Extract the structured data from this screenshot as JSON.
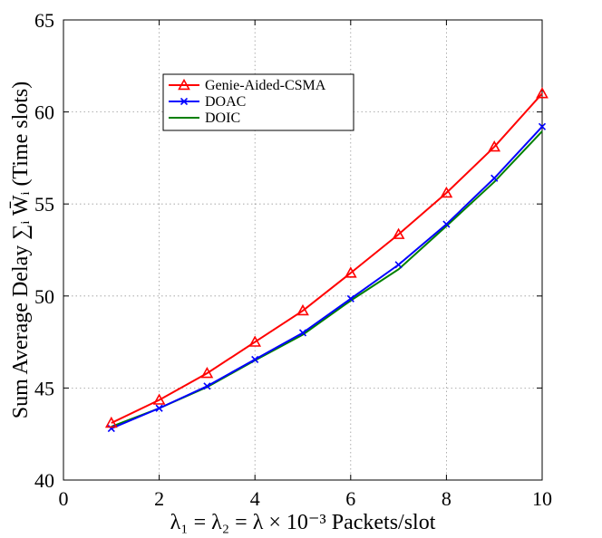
{
  "chart_data": {
    "type": "line",
    "x": [
      1,
      2,
      3,
      4,
      5,
      6,
      7,
      8,
      9,
      10
    ],
    "series": [
      {
        "name": "Genie-Aided-CSMA",
        "color": "#ff0000",
        "marker": "triangle",
        "values": [
          43.1,
          44.35,
          45.8,
          47.5,
          49.2,
          51.25,
          53.35,
          55.6,
          58.1,
          61.0
        ]
      },
      {
        "name": "DOAC",
        "color": "#0000ff",
        "marker": "x",
        "values": [
          42.8,
          43.9,
          45.1,
          46.55,
          48.0,
          49.85,
          51.7,
          53.9,
          56.4,
          59.2
        ]
      },
      {
        "name": "DOIC",
        "color": "#008000",
        "marker": "none",
        "values": [
          42.9,
          43.9,
          45.05,
          46.5,
          47.9,
          49.75,
          51.45,
          53.8,
          56.2,
          58.95
        ]
      }
    ],
    "xlim": [
      0,
      10
    ],
    "ylim": [
      40,
      65
    ],
    "xticks": [
      0,
      2,
      4,
      6,
      8,
      10
    ],
    "yticks": [
      40,
      45,
      50,
      55,
      60,
      65
    ],
    "xlabel": "λ₁ = λ₂ = λ × 10⁻³ Packets/slot",
    "ylabel": "Sum Average Delay ∑ᵢ W̄ᵢ (Time slots)",
    "grid": true,
    "legend_position": "upper-left"
  }
}
